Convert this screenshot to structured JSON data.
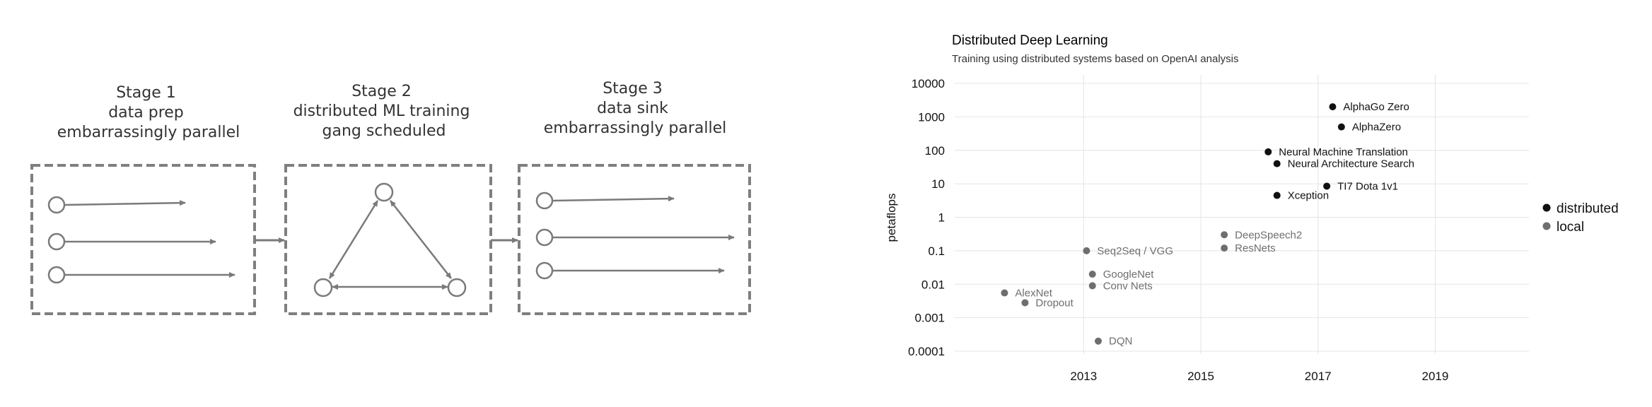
{
  "diagram": {
    "stages": [
      {
        "lines": [
          "Stage 1",
          "data prep",
          "embarrassingly parallel"
        ]
      },
      {
        "lines": [
          "Stage 2",
          "distributed ML training",
          "gang scheduled"
        ]
      },
      {
        "lines": [
          "Stage 3",
          "data sink",
          "embarrassingly parallel"
        ]
      }
    ]
  },
  "chart_data": {
    "type": "scatter",
    "title": "Distributed Deep Learning",
    "subtitle": "Training using distributed systems based on OpenAI analysis",
    "xlabel": "",
    "ylabel": "petaflops",
    "xlim": [
      2010.8,
      2020.6
    ],
    "ylim": [
      0.0001,
      10000
    ],
    "yscale": "log",
    "xticks": [
      2013,
      2015,
      2017,
      2019
    ],
    "yticks": [
      {
        "value": 10000,
        "label": "10000"
      },
      {
        "value": 1000,
        "label": "1000"
      },
      {
        "value": 100,
        "label": "100"
      },
      {
        "value": 10,
        "label": "10"
      },
      {
        "value": 1,
        "label": "1"
      },
      {
        "value": 0.1,
        "label": "0.1"
      },
      {
        "value": 0.01,
        "label": "0.01"
      },
      {
        "value": 0.001,
        "label": "0.001"
      },
      {
        "value": 0.0001,
        "label": "0.0001"
      }
    ],
    "grid": true,
    "legend_position": "right",
    "series": [
      {
        "name": "distributed",
        "color": "#111111",
        "points": [
          {
            "x": 2017.25,
            "y": 2000,
            "label": "AlphaGo Zero"
          },
          {
            "x": 2017.4,
            "y": 500,
            "label": "AlphaZero"
          },
          {
            "x": 2016.15,
            "y": 90,
            "label": "Neural Machine Translation"
          },
          {
            "x": 2016.3,
            "y": 40,
            "label": "Neural Architecture Search"
          },
          {
            "x": 2017.15,
            "y": 8.5,
            "label": "TI7 Dota 1v1"
          },
          {
            "x": 2016.3,
            "y": 4.5,
            "label": "Xception"
          }
        ]
      },
      {
        "name": "local",
        "color": "#6e6e6e",
        "points": [
          {
            "x": 2015.4,
            "y": 0.3,
            "label": "DeepSpeech2"
          },
          {
            "x": 2015.4,
            "y": 0.12,
            "label": "ResNets"
          },
          {
            "x": 2013.05,
            "y": 0.1,
            "label": "Seq2Seq / VGG"
          },
          {
            "x": 2013.15,
            "y": 0.02,
            "label": "GoogleNet"
          },
          {
            "x": 2013.15,
            "y": 0.009,
            "label": "Conv Nets"
          },
          {
            "x": 2011.65,
            "y": 0.0055,
            "label": "AlexNet"
          },
          {
            "x": 2012.0,
            "y": 0.0028,
            "label": "Dropout"
          },
          {
            "x": 2013.25,
            "y": 0.0002,
            "label": "DQN"
          }
        ]
      }
    ]
  }
}
